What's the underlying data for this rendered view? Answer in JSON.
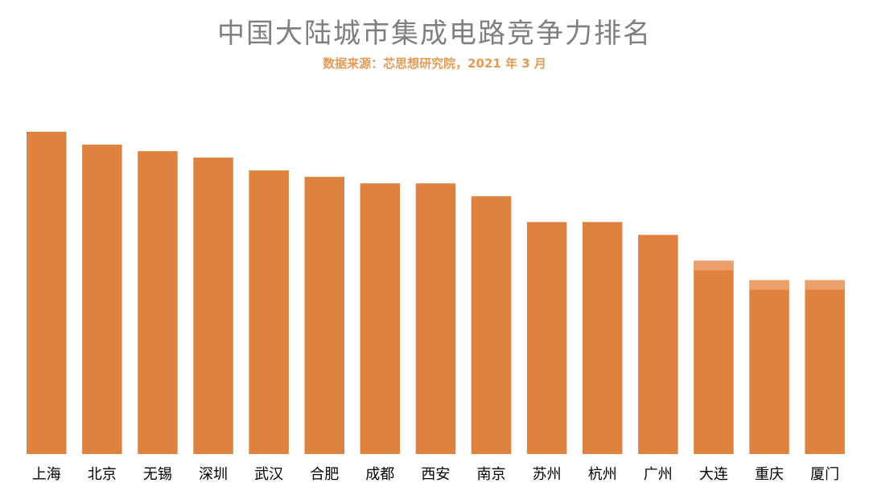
{
  "chart_data": {
    "type": "bar",
    "title": "中国大陆城市集成电路竞争力排名",
    "subtitle": "数据来源：芯思想研究院，2021 年 3 月",
    "categories": [
      "上海",
      "北京",
      "无锡",
      "深圳",
      "武汉",
      "合肥",
      "成都",
      "西安",
      "南京",
      "苏州",
      "杭州",
      "广州",
      "大连",
      "重庆",
      "厦门"
    ],
    "values": [
      100,
      96,
      94,
      92,
      88,
      86,
      84,
      84,
      80,
      72,
      72,
      68,
      60,
      54,
      54
    ],
    "xlabel": "",
    "ylabel": "",
    "ylim": [
      0,
      100
    ],
    "grid": false,
    "legend": "none",
    "bar_color": "#e0823f",
    "bar_highlight_color": "#eba06c",
    "label_color": "#000000"
  }
}
